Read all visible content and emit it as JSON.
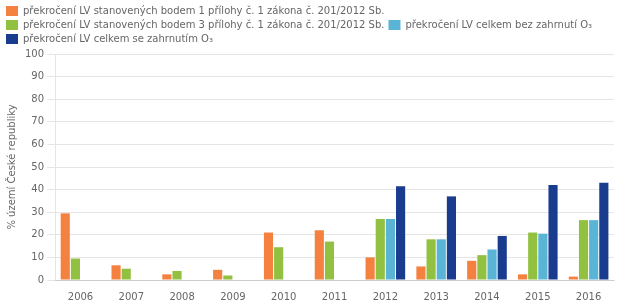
{
  "chart_data": {
    "type": "bar",
    "ylabel": "% území České republiky",
    "categories": [
      "2006",
      "2007",
      "2008",
      "2009",
      "2010",
      "2011",
      "2012",
      "2013",
      "2014",
      "2015",
      "2016"
    ],
    "series": [
      {
        "name": "překročení LV stanovených bodem 1 přílohy č. 1 zákona č. 201/2012 Sb.",
        "color": "#f4813f",
        "values": [
          29.5,
          6.5,
          2.5,
          4.5,
          21.0,
          22.0,
          10.0,
          6.0,
          8.5,
          2.5,
          1.5
        ]
      },
      {
        "name": "překročení LV stanovených bodem 3 přílohy č. 1 zákona č. 201/2012 Sb.",
        "color": "#92c040",
        "values": [
          9.5,
          5.0,
          4.0,
          2.0,
          14.5,
          17.0,
          27.0,
          18.0,
          11.0,
          21.0,
          26.5
        ]
      },
      {
        "name": "překročení LV celkem bez zahrnutí O₃",
        "color": "#5ab4d6",
        "values": [
          0,
          0,
          0,
          0,
          0,
          0,
          27.0,
          18.0,
          13.5,
          20.5,
          26.5
        ]
      },
      {
        "name": "překročení LV celkem se zahrnutím O₃",
        "color": "#1a3c8e",
        "values": [
          0,
          0,
          0,
          0,
          0,
          0,
          41.5,
          37.0,
          19.5,
          42.0,
          43.0
        ]
      }
    ],
    "ylim": [
      0,
      100
    ],
    "yticks": [
      0,
      10,
      20,
      30,
      40,
      50,
      60,
      70,
      80,
      90,
      100
    ],
    "grid": true,
    "legend": "upper left"
  }
}
